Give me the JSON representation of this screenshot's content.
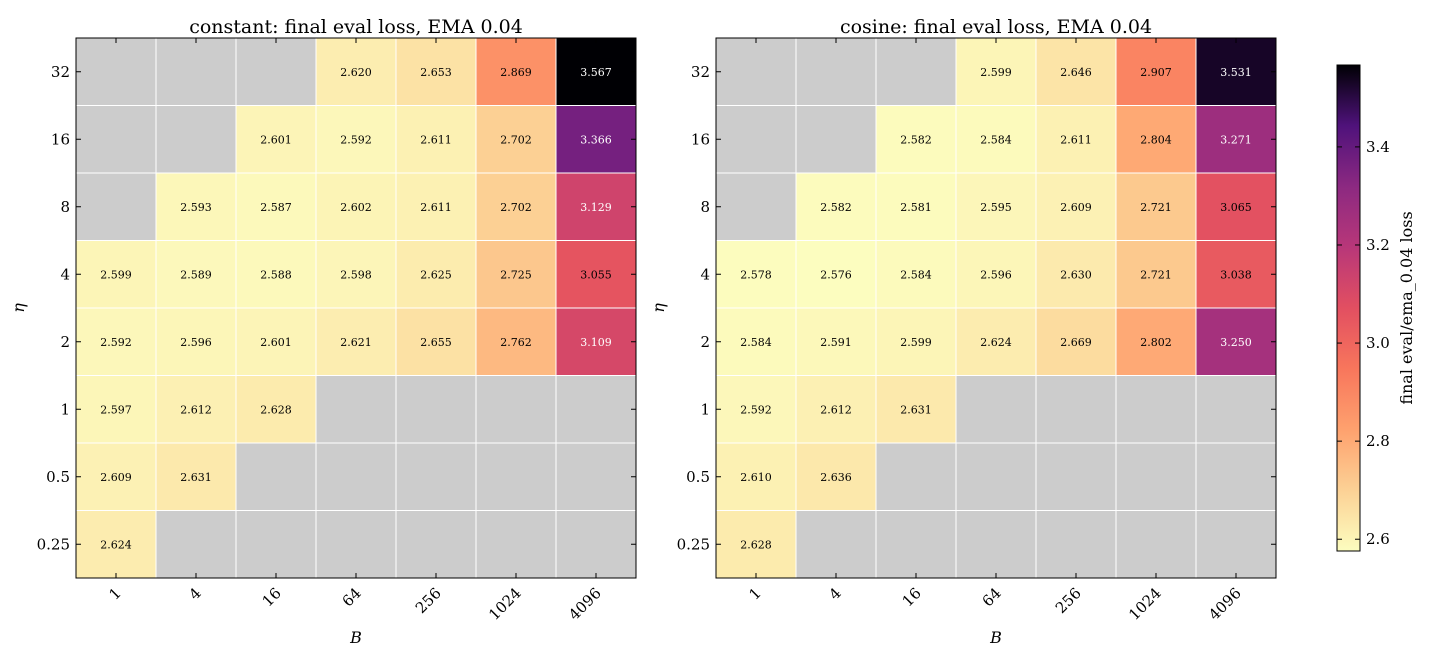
{
  "chart_data": [
    {
      "type": "heatmap",
      "title": "constant: final eval loss, EMA 0.04",
      "xlabel": "B",
      "ylabel": "η",
      "x": [
        "1",
        "4",
        "16",
        "64",
        "256",
        "1024",
        "4096"
      ],
      "y": [
        "32",
        "16",
        "8",
        "4",
        "2",
        "1",
        "0.5",
        "0.25"
      ],
      "values": [
        [
          null,
          null,
          null,
          2.62,
          2.653,
          2.869,
          3.567
        ],
        [
          null,
          null,
          2.601,
          2.592,
          2.611,
          2.702,
          3.366
        ],
        [
          null,
          2.593,
          2.587,
          2.602,
          2.611,
          2.702,
          3.129
        ],
        [
          2.599,
          2.589,
          2.588,
          2.598,
          2.625,
          2.725,
          3.055
        ],
        [
          2.592,
          2.596,
          2.601,
          2.621,
          2.655,
          2.762,
          3.109
        ],
        [
          2.597,
          2.612,
          2.628,
          null,
          null,
          null,
          null
        ],
        [
          2.609,
          2.631,
          null,
          null,
          null,
          null,
          null
        ],
        [
          2.624,
          null,
          null,
          null,
          null,
          null,
          null
        ]
      ],
      "missing_color": "#cccccc",
      "grid": true
    },
    {
      "type": "heatmap",
      "title": "cosine: final eval loss, EMA 0.04",
      "xlabel": "B",
      "ylabel": "η",
      "x": [
        "1",
        "4",
        "16",
        "64",
        "256",
        "1024",
        "4096"
      ],
      "y": [
        "32",
        "16",
        "8",
        "4",
        "2",
        "1",
        "0.5",
        "0.25"
      ],
      "values": [
        [
          null,
          null,
          null,
          2.599,
          2.646,
          2.907,
          3.531
        ],
        [
          null,
          null,
          2.582,
          2.584,
          2.611,
          2.804,
          3.271
        ],
        [
          null,
          2.582,
          2.581,
          2.595,
          2.609,
          2.721,
          3.065
        ],
        [
          2.578,
          2.576,
          2.584,
          2.596,
          2.63,
          2.721,
          3.038
        ],
        [
          2.584,
          2.591,
          2.599,
          2.624,
          2.669,
          2.802,
          3.25
        ],
        [
          2.592,
          2.612,
          2.631,
          null,
          null,
          null,
          null
        ],
        [
          2.61,
          2.636,
          null,
          null,
          null,
          null,
          null
        ],
        [
          2.628,
          null,
          null,
          null,
          null,
          null,
          null
        ]
      ],
      "missing_color": "#cccccc",
      "grid": true
    }
  ],
  "colorbar": {
    "label": "final eval/ema_0.04 loss",
    "colormap": "magma_r",
    "vmin": 2.576,
    "vmax": 3.567,
    "ticks": [
      2.6,
      2.8,
      3.0,
      3.2,
      3.4
    ],
    "tick_labels": [
      "2.6",
      "2.8",
      "3.0",
      "3.2",
      "3.4"
    ]
  }
}
